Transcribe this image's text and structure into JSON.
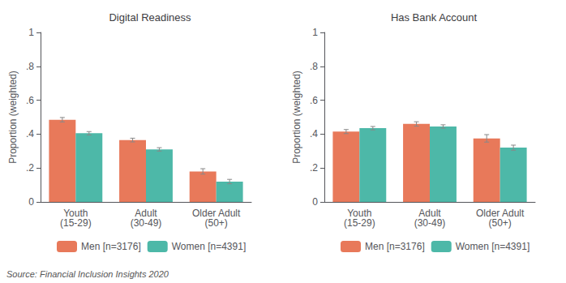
{
  "chart_data": [
    {
      "type": "bar",
      "title": "Digital Readiness",
      "categories": [
        "Youth\n(15-29)",
        "Adult\n(30-49)",
        "Older Adult\n(50+)"
      ],
      "series": [
        {
          "name": "Men [n=3176]",
          "color": "#E8795A",
          "values": [
            0.485,
            0.365,
            0.18
          ],
          "errors": [
            0.013,
            0.011,
            0.016
          ]
        },
        {
          "name": "Women [n=4391]",
          "color": "#4DB8A8",
          "values": [
            0.405,
            0.31,
            0.12
          ],
          "errors": [
            0.01,
            0.01,
            0.013
          ]
        }
      ],
      "ylabel": "Proportion (weighted)",
      "ylim": [
        0,
        1
      ],
      "yticks": [
        0,
        {
          "value": 0.2,
          "label": ".2"
        },
        {
          "value": 0.4,
          "label": ".4"
        },
        {
          "value": 0.6,
          "label": ".6"
        },
        {
          "value": 0.8,
          "label": ".8"
        },
        1
      ],
      "grid": false,
      "legend": "bottom",
      "annotations": [
        "Source: Financial Inclusion Insights 2020"
      ]
    },
    {
      "type": "bar",
      "title": "Has Bank Account",
      "categories": [
        "Youth\n(15-29)",
        "Adult\n(30-49)",
        "Older Adult\n(50+)"
      ],
      "series": [
        {
          "name": "Men [n=3176]",
          "color": "#E8795A",
          "values": [
            0.415,
            0.46,
            0.375
          ],
          "errors": [
            0.012,
            0.013,
            0.022
          ]
        },
        {
          "name": "Women [n=4391]",
          "color": "#4DB8A8",
          "values": [
            0.435,
            0.445,
            0.32
          ],
          "errors": [
            0.01,
            0.01,
            0.015
          ]
        }
      ],
      "ylabel": "Proportion (weighted)",
      "ylim": [
        0,
        1
      ],
      "yticks": [
        0,
        {
          "value": 0.2,
          "label": ".2"
        },
        {
          "value": 0.4,
          "label": ".4"
        },
        {
          "value": 0.6,
          "label": ".6"
        },
        {
          "value": 0.8,
          "label": ".8"
        },
        1
      ],
      "grid": false,
      "legend": "bottom"
    }
  ]
}
